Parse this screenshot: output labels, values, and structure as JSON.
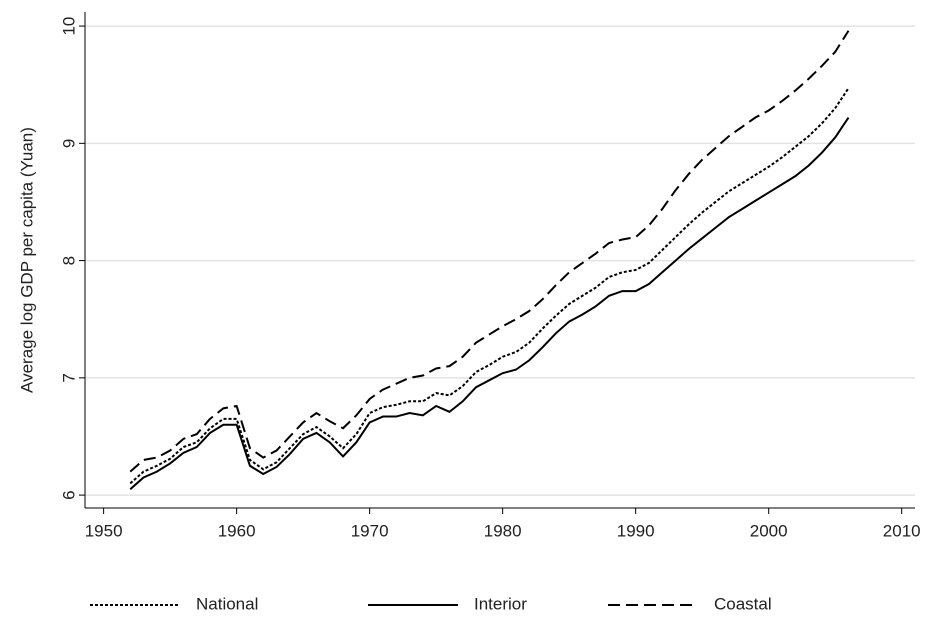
{
  "chart_data": {
    "type": "line",
    "ylabel": "Average log GDP per capita (Yuan)",
    "x": [
      1952,
      1953,
      1954,
      1955,
      1956,
      1957,
      1958,
      1959,
      1960,
      1961,
      1962,
      1963,
      1964,
      1965,
      1966,
      1967,
      1968,
      1969,
      1970,
      1971,
      1972,
      1973,
      1974,
      1975,
      1976,
      1977,
      1978,
      1979,
      1980,
      1981,
      1982,
      1983,
      1984,
      1985,
      1986,
      1987,
      1988,
      1989,
      1990,
      1991,
      1992,
      1993,
      1994,
      1995,
      1996,
      1997,
      1998,
      1999,
      2000,
      2001,
      2002,
      2003,
      2004,
      2005,
      2006
    ],
    "series": [
      {
        "name": "National",
        "color": "#000000",
        "dash": "dotted",
        "values": [
          6.1,
          6.2,
          6.25,
          6.31,
          6.41,
          6.45,
          6.57,
          6.65,
          6.65,
          6.3,
          6.22,
          6.28,
          6.4,
          6.52,
          6.58,
          6.5,
          6.4,
          6.52,
          6.7,
          6.75,
          6.77,
          6.8,
          6.8,
          6.87,
          6.85,
          6.93,
          7.05,
          7.11,
          7.18,
          7.22,
          7.3,
          7.42,
          7.53,
          7.63,
          7.7,
          7.77,
          7.86,
          7.9,
          7.92,
          7.98,
          8.09,
          8.2,
          8.31,
          8.41,
          8.5,
          8.59,
          8.66,
          8.73,
          8.8,
          8.88,
          8.97,
          9.06,
          9.17,
          9.3,
          9.47
        ]
      },
      {
        "name": "Interior",
        "color": "#000000",
        "dash": "solid",
        "values": [
          6.05,
          6.15,
          6.2,
          6.27,
          6.36,
          6.41,
          6.53,
          6.6,
          6.6,
          6.25,
          6.18,
          6.24,
          6.35,
          6.48,
          6.53,
          6.45,
          6.33,
          6.45,
          6.62,
          6.67,
          6.67,
          6.7,
          6.68,
          6.76,
          6.71,
          6.8,
          6.92,
          6.98,
          7.04,
          7.07,
          7.15,
          7.26,
          7.38,
          7.48,
          7.54,
          7.61,
          7.7,
          7.74,
          7.74,
          7.8,
          7.9,
          8.0,
          8.1,
          8.19,
          8.28,
          8.37,
          8.44,
          8.51,
          8.58,
          8.65,
          8.72,
          8.81,
          8.92,
          9.05,
          9.22
        ]
      },
      {
        "name": "Coastal",
        "color": "#000000",
        "dash": "dashed",
        "values": [
          6.2,
          6.3,
          6.32,
          6.38,
          6.48,
          6.52,
          6.65,
          6.74,
          6.76,
          6.4,
          6.32,
          6.38,
          6.5,
          6.62,
          6.7,
          6.63,
          6.57,
          6.68,
          6.82,
          6.9,
          6.95,
          7.0,
          7.02,
          7.08,
          7.1,
          7.18,
          7.3,
          7.37,
          7.44,
          7.5,
          7.57,
          7.67,
          7.79,
          7.9,
          7.98,
          8.06,
          8.15,
          8.18,
          8.2,
          8.3,
          8.44,
          8.6,
          8.74,
          8.86,
          8.96,
          9.06,
          9.14,
          9.22,
          9.28,
          9.36,
          9.45,
          9.55,
          9.66,
          9.78,
          9.96
        ]
      }
    ],
    "xlim": [
      1948.6,
      2011
    ],
    "xticks": [
      1950,
      1960,
      1970,
      1980,
      1990,
      2000,
      2010
    ],
    "ylim": [
      5.89,
      10.12
    ],
    "yticks": [
      6,
      7,
      8,
      9,
      10
    ],
    "grid": true,
    "legend": "bottom"
  }
}
